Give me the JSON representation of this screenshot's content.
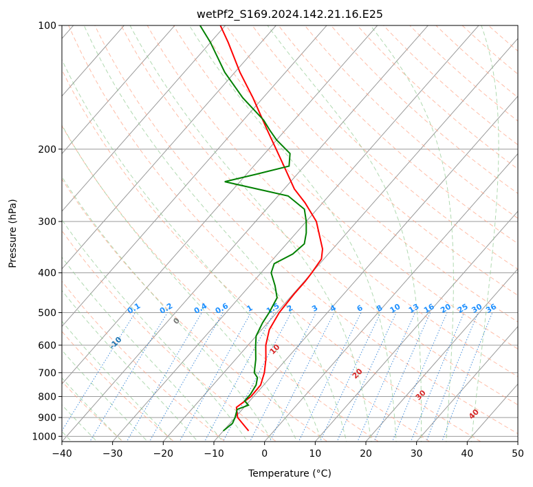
{
  "chart_data": {
    "type": "skew-t log-p",
    "title": "wetPf2_S169.2024.142.21.16.E25",
    "xlabel": "Temperature (°C)",
    "ylabel": "Pressure (hPa)",
    "xlim": [
      -40,
      50
    ],
    "ylim": [
      1030,
      100
    ],
    "y_scale": "log",
    "grid": true,
    "x_ticks": [
      -40,
      -30,
      -20,
      -10,
      0,
      10,
      20,
      30,
      40,
      50
    ],
    "y_ticks": [
      1000,
      900,
      800,
      700,
      600,
      500,
      400,
      300,
      200,
      100
    ],
    "series": [
      {
        "color": "#ff0000",
        "role": "temperature",
        "points": [
          {
            "p": 970,
            "t": -5.0
          },
          {
            "p": 900,
            "t": -9.5
          },
          {
            "p": 850,
            "t": -11.5
          },
          {
            "p": 800,
            "t": -10.5
          },
          {
            "p": 750,
            "t": -10.6
          },
          {
            "p": 700,
            "t": -12.0
          },
          {
            "p": 650,
            "t": -14.0
          },
          {
            "p": 600,
            "t": -16.5
          },
          {
            "p": 550,
            "t": -18.5
          },
          {
            "p": 500,
            "t": -19.5
          },
          {
            "p": 450,
            "t": -19.8
          },
          {
            "p": 420,
            "t": -19.8
          },
          {
            "p": 400,
            "t": -20.0
          },
          {
            "p": 370,
            "t": -20.5
          },
          {
            "p": 350,
            "t": -22.0
          },
          {
            "p": 300,
            "t": -28.0
          },
          {
            "p": 270,
            "t": -33.5
          },
          {
            "p": 250,
            "t": -38.0
          },
          {
            "p": 220,
            "t": -44.0
          },
          {
            "p": 200,
            "t": -48.5
          },
          {
            "p": 180,
            "t": -53.5
          },
          {
            "p": 150,
            "t": -62.0
          },
          {
            "p": 130,
            "t": -69.0
          },
          {
            "p": 110,
            "t": -76.5
          },
          {
            "p": 100,
            "t": -81.0
          }
        ]
      },
      {
        "color": "#008000",
        "role": "dewpoint",
        "points": [
          {
            "p": 970,
            "t": -10.0
          },
          {
            "p": 930,
            "t": -9.5
          },
          {
            "p": 900,
            "t": -10.0
          },
          {
            "p": 860,
            "t": -11.0
          },
          {
            "p": 840,
            "t": -9.5
          },
          {
            "p": 820,
            "t": -11.0
          },
          {
            "p": 790,
            "t": -11.0
          },
          {
            "p": 750,
            "t": -11.5
          },
          {
            "p": 720,
            "t": -12.5
          },
          {
            "p": 700,
            "t": -14.0
          },
          {
            "p": 650,
            "t": -16.0
          },
          {
            "p": 600,
            "t": -18.5
          },
          {
            "p": 570,
            "t": -20.0
          },
          {
            "p": 530,
            "t": -21.0
          },
          {
            "p": 500,
            "t": -21.5
          },
          {
            "p": 460,
            "t": -22.5
          },
          {
            "p": 430,
            "t": -25.0
          },
          {
            "p": 400,
            "t": -28.0
          },
          {
            "p": 380,
            "t": -29.0
          },
          {
            "p": 360,
            "t": -27.0
          },
          {
            "p": 340,
            "t": -26.5
          },
          {
            "p": 320,
            "t": -28.0
          },
          {
            "p": 300,
            "t": -30.0
          },
          {
            "p": 280,
            "t": -32.5
          },
          {
            "p": 260,
            "t": -38.0
          },
          {
            "p": 240,
            "t": -53.0
          },
          {
            "p": 230,
            "t": -48.0
          },
          {
            "p": 220,
            "t": -43.0
          },
          {
            "p": 205,
            "t": -45.0
          },
          {
            "p": 190,
            "t": -50.0
          },
          {
            "p": 180,
            "t": -53.0
          },
          {
            "p": 170,
            "t": -56.0
          },
          {
            "p": 150,
            "t": -64.0
          },
          {
            "p": 130,
            "t": -72.0
          },
          {
            "p": 110,
            "t": -80.0
          },
          {
            "p": 100,
            "t": -85.0
          }
        ]
      }
    ],
    "dry_adiabats": [
      -100,
      -90,
      -80,
      -70,
      -60,
      -50,
      -40,
      -30,
      -20,
      -10
    ],
    "moist_adiabats": [
      0,
      10,
      20,
      30,
      40
    ],
    "mixing_ratios": [
      "0.1",
      "0.2",
      "0.4",
      "0.6",
      "1",
      "1.5",
      "2",
      "3",
      "4",
      "6",
      "8",
      "10",
      "13",
      "16",
      "20",
      "25",
      "30",
      "36"
    ],
    "colors": {
      "temperature": "#ff0000",
      "dewpoint": "#008000",
      "dry_adiabat_labels": "#1f77b4",
      "moist_adiabat_labels": "#d62728",
      "mixing_ratio_labels": "#1e90ff",
      "dry_adiabat_lines": "#ff9f80",
      "moist_adiabat_lines": "#8fc98f",
      "mixing_ratio_lines": "#1f77d4",
      "isotherms": "#999999"
    }
  }
}
